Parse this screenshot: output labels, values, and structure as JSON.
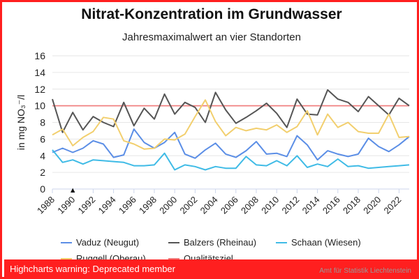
{
  "chart_data": {
    "type": "line",
    "title": "Nitrat-Konzentration im Grundwasser",
    "subtitle": "Jahresmaximalwert an vier Standorten",
    "ylabel": "in mg NO₃⁻/l",
    "xlabel": "",
    "ylim": [
      0,
      16
    ],
    "yticks": [
      0,
      2,
      4,
      6,
      8,
      10,
      12,
      14,
      16
    ],
    "xticks": [
      "1988",
      "1990",
      "1992",
      "1994",
      "1996",
      "1998",
      "2000",
      "2002",
      "2004",
      "2006",
      "2008",
      "2010",
      "2012",
      "2014",
      "2016",
      "2018",
      "2020",
      "2022"
    ],
    "x": [
      1988,
      1989,
      1990,
      1991,
      1992,
      1993,
      1994,
      1995,
      1996,
      1997,
      1998,
      1999,
      2000,
      2001,
      2002,
      2003,
      2004,
      2005,
      2006,
      2007,
      2008,
      2009,
      2010,
      2011,
      2012,
      2013,
      2014,
      2015,
      2016,
      2017,
      2018,
      2019,
      2020,
      2021,
      2022,
      2023
    ],
    "grid": true,
    "legend_position": "bottom",
    "series": [
      {
        "name": "Vaduz (Neugut)",
        "color": "#5b8ee6",
        "values": [
          4.4,
          4.9,
          4.4,
          4.9,
          5.8,
          5.4,
          3.8,
          4.1,
          7.2,
          5.6,
          4.9,
          5.6,
          6.8,
          4.2,
          3.7,
          4.7,
          5.5,
          4.2,
          3.8,
          4.6,
          5.7,
          4.2,
          4.3,
          3.9,
          6.4,
          5.3,
          3.5,
          4.6,
          4.2,
          3.9,
          4.2,
          6.1,
          5.1,
          4.5,
          5.3,
          6.3
        ]
      },
      {
        "name": "Balzers (Rheinau)",
        "color": "#555555",
        "values": [
          10.8,
          6.8,
          9.2,
          7.1,
          8.7,
          8.0,
          7.5,
          10.4,
          7.6,
          9.7,
          8.4,
          11.4,
          9.0,
          10.4,
          9.8,
          8.0,
          11.6,
          9.5,
          7.9,
          8.6,
          9.4,
          10.3,
          9.1,
          7.4,
          10.8,
          9.0,
          8.9,
          11.9,
          10.8,
          10.4,
          9.3,
          11.1,
          10.0,
          8.9,
          10.9,
          10.0
        ]
      },
      {
        "name": "Schaan (Wiesen)",
        "color": "#3fbbe6",
        "values": [
          4.7,
          3.2,
          3.5,
          3.0,
          3.5,
          3.4,
          3.3,
          3.2,
          2.8,
          2.8,
          2.9,
          4.3,
          2.3,
          2.9,
          2.7,
          2.3,
          2.7,
          2.5,
          2.5,
          3.9,
          2.9,
          2.8,
          3.4,
          2.8,
          4.0,
          2.6,
          3.0,
          2.7,
          3.6,
          2.7,
          2.8,
          2.5,
          2.6,
          2.7,
          2.8,
          2.9
        ]
      },
      {
        "name": "Ruggell (Oberau)",
        "color": "#f2cf6e",
        "values": [
          6.5,
          7.2,
          5.2,
          6.2,
          6.9,
          8.6,
          8.4,
          5.8,
          5.4,
          4.8,
          4.9,
          6.0,
          5.9,
          6.6,
          8.7,
          10.7,
          8.1,
          6.4,
          7.4,
          7.0,
          7.3,
          7.1,
          7.7,
          6.8,
          7.5,
          9.4,
          6.5,
          9.0,
          7.4,
          8.0,
          6.9,
          6.7,
          6.7,
          9.0,
          6.2,
          6.3
        ]
      }
    ],
    "target_line": {
      "name": "Qualitätsziel",
      "value": 10,
      "color": "#f08080"
    },
    "annotation": {
      "symbol": "▲",
      "x": 1990,
      "y": 0
    }
  },
  "warning_text": "Highcharts warning: Deprecated member",
  "credits_text": "Amt für Statistik Liechtenstein"
}
